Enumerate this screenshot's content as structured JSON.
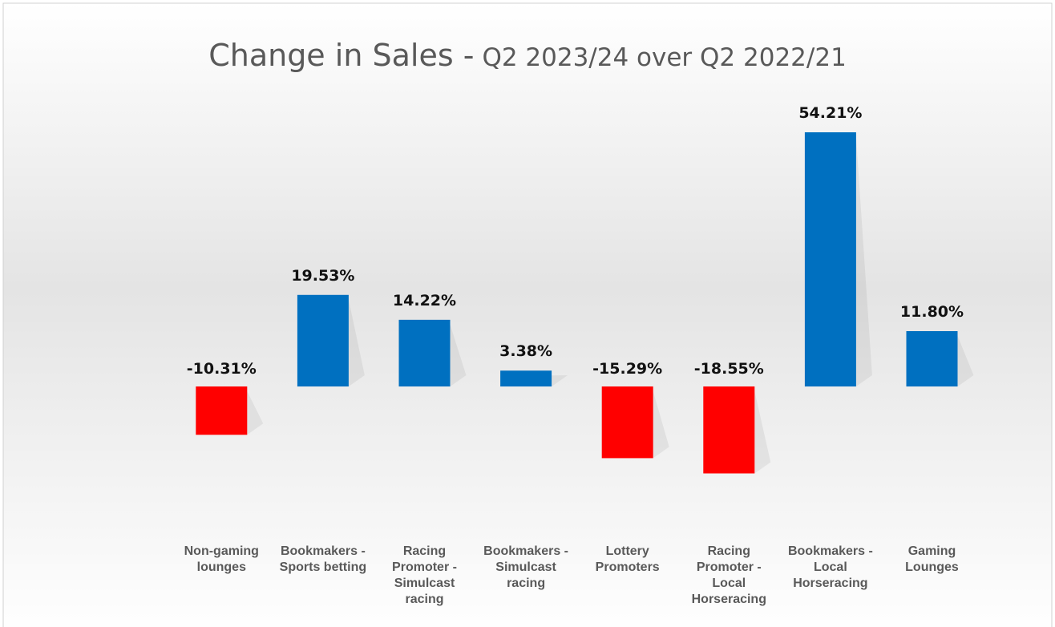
{
  "chart_data": {
    "type": "bar",
    "title": "Change in Sales -",
    "subtitle": "Q2 2023/24 over Q2 2022/21",
    "categories": [
      "Non-gaming lounges",
      "Bookmakers - Sports betting",
      "Racing Promoter - Simulcast racing",
      "Bookmakers - Simulcast racing",
      "Lottery Promoters",
      "Racing Promoter - Local Horseracing",
      "Bookmakers - Local Horseracing",
      "Gaming Lounges"
    ],
    "values": [
      -10.31,
      19.53,
      14.22,
      3.38,
      -15.29,
      -18.55,
      54.21,
      11.8
    ],
    "value_labels": [
      "-10.31%",
      "19.53%",
      "14.22%",
      "3.38%",
      "-15.29%",
      "-18.55%",
      "54.21%",
      "11.80%"
    ],
    "colors": [
      "#ff0000",
      "#0070c0",
      "#0070c0",
      "#0070c0",
      "#ff0000",
      "#ff0000",
      "#0070c0",
      "#0070c0"
    ]
  }
}
